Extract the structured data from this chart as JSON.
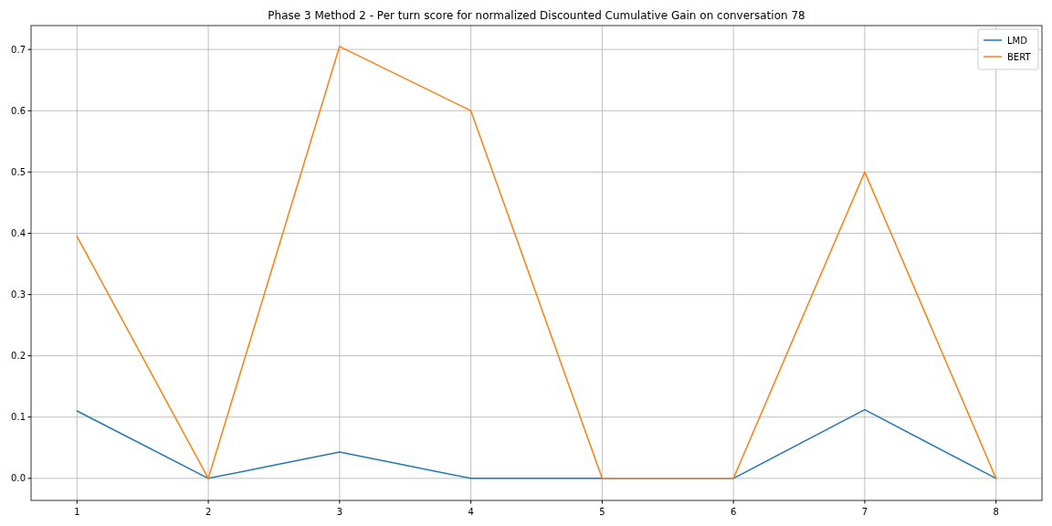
{
  "chart_data": {
    "type": "line",
    "title": "Phase 3 Method 2 - Per turn score for normalized Discounted Cumulative Gain on conversation 78",
    "x": [
      1,
      2,
      3,
      4,
      5,
      6,
      7,
      8
    ],
    "series": [
      {
        "name": "LMD",
        "color": "#1f77b4",
        "values": [
          0.11,
          0,
          0.043,
          0,
          0,
          0,
          0.112,
          0
        ]
      },
      {
        "name": "BERT",
        "color": "#ff7f0e",
        "values": [
          0.395,
          0,
          0.705,
          0.6,
          0,
          0,
          0.5,
          0
        ]
      }
    ],
    "xlim": [
      0.65,
      8.35
    ],
    "xticks": [
      1,
      2,
      3,
      4,
      5,
      6,
      7,
      8
    ],
    "ylim": [
      -0.036,
      0.739
    ],
    "yticks": [
      {
        "value": 0,
        "label": "0.0"
      },
      {
        "value": 0.1,
        "label": "0.1"
      },
      {
        "value": 0.2,
        "label": "0.2"
      },
      {
        "value": 0.3,
        "label": "0.3"
      },
      {
        "value": 0.4,
        "label": "0.4"
      },
      {
        "value": 0.5,
        "label": "0.5"
      },
      {
        "value": 0.6,
        "label": "0.6"
      },
      {
        "value": 0.7,
        "label": "0.7"
      }
    ],
    "grid": true,
    "legend": "top right"
  }
}
